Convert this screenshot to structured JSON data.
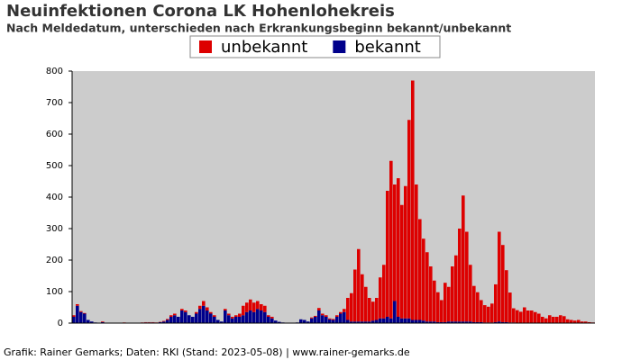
{
  "chart_data": {
    "type": "stacked_bar",
    "title": "Neuinfektionen Corona LK Hohenlohekreis",
    "subtitle": "Nach Meldedatum, unterschieden nach Erkrankungsbeginn bekannt/unbekannt",
    "footer": "Grafik: Rainer Gemarks; Daten: RKI (Stand: 2023-05-08) | www.rainer-gemarks.de",
    "legend": "top",
    "categories": [
      null,
      null,
      null,
      null,
      null,
      null,
      null,
      null,
      null,
      null,
      null,
      null,
      null,
      null,
      null,
      null,
      null,
      null,
      null,
      null,
      null,
      null,
      null,
      null,
      null,
      null,
      null,
      null,
      null,
      null,
      null,
      null,
      null,
      null,
      null,
      null,
      null,
      null,
      null,
      null,
      null,
      null,
      null,
      null,
      null,
      null,
      null,
      null,
      null,
      null,
      null,
      null,
      null,
      null,
      null,
      null,
      null,
      null,
      null,
      null,
      null,
      null,
      null,
      null,
      null,
      null,
      null,
      null,
      null,
      null,
      null,
      null,
      null,
      null,
      null,
      null,
      null,
      null,
      null,
      null,
      null,
      null,
      null,
      null,
      null,
      null,
      null,
      null,
      null,
      null,
      null,
      null,
      null,
      null,
      null,
      null,
      null,
      null,
      null,
      null,
      null,
      null,
      null,
      null,
      null,
      null,
      null,
      null,
      null,
      null,
      null,
      null,
      null,
      null,
      null,
      null,
      null,
      null,
      null,
      null,
      null,
      null,
      null,
      null,
      null,
      null,
      null,
      null,
      null,
      null,
      null,
      null,
      null,
      null,
      null,
      null,
      null,
      null,
      null,
      null,
      null,
      null,
      null,
      null,
      null
    ],
    "series": [
      {
        "name": "bekannt",
        "color": "#00008b",
        "values": [
          20,
          55,
          35,
          30,
          10,
          5,
          2,
          1,
          3,
          1,
          0,
          0,
          0,
          1,
          1,
          0,
          0,
          0,
          0,
          1,
          2,
          2,
          2,
          1,
          3,
          5,
          10,
          20,
          25,
          20,
          40,
          35,
          25,
          20,
          30,
          45,
          55,
          40,
          30,
          20,
          10,
          5,
          40,
          25,
          15,
          20,
          20,
          25,
          35,
          40,
          35,
          45,
          40,
          35,
          20,
          15,
          8,
          4,
          2,
          0,
          1,
          0,
          2,
          12,
          10,
          5,
          15,
          20,
          40,
          25,
          20,
          12,
          10,
          20,
          30,
          35,
          10,
          5,
          5,
          5,
          5,
          5,
          5,
          8,
          10,
          15,
          15,
          20,
          15,
          70,
          20,
          15,
          15,
          15,
          10,
          10,
          10,
          8,
          5,
          5,
          5,
          3,
          3,
          3,
          5,
          5,
          5,
          5,
          5,
          5,
          5,
          3,
          3,
          3,
          2,
          2,
          2,
          3,
          5,
          3,
          3,
          2,
          2,
          1,
          1,
          0,
          0,
          0,
          0,
          0,
          0,
          0,
          0,
          0,
          0,
          0,
          0,
          0,
          0,
          0,
          0,
          0,
          0,
          0,
          0
        ]
      },
      {
        "name": "unbekannt",
        "color": "#dd0000",
        "values": [
          5,
          5,
          3,
          2,
          0,
          0,
          0,
          0,
          2,
          0,
          0,
          0,
          0,
          0,
          1,
          0,
          0,
          0,
          0,
          1,
          1,
          1,
          1,
          1,
          1,
          2,
          3,
          5,
          5,
          0,
          5,
          5,
          0,
          0,
          5,
          10,
          15,
          10,
          5,
          5,
          0,
          0,
          5,
          5,
          5,
          5,
          10,
          30,
          30,
          35,
          30,
          25,
          20,
          20,
          5,
          5,
          0,
          0,
          0,
          0,
          0,
          0,
          0,
          0,
          0,
          0,
          3,
          3,
          8,
          5,
          5,
          3,
          3,
          5,
          5,
          10,
          70,
          90,
          165,
          230,
          150,
          110,
          75,
          60,
          70,
          130,
          170,
          400,
          500,
          370,
          440,
          360,
          420,
          630,
          760,
          430,
          320,
          260,
          220,
          175,
          130,
          95,
          70,
          125,
          110,
          175,
          210,
          295,
          400,
          285,
          180,
          115,
          95,
          70,
          55,
          50,
          60,
          120,
          285,
          245,
          165,
          95,
          45,
          40,
          35,
          50,
          40,
          40,
          35,
          30,
          20,
          15,
          25,
          20,
          20,
          25,
          22,
          12,
          10,
          8,
          10,
          5,
          5,
          3,
          2
        ]
      }
    ],
    "ylim": [
      0,
      800
    ],
    "yticks": [
      0,
      100,
      200,
      300,
      400,
      500,
      600,
      700,
      800
    ]
  }
}
